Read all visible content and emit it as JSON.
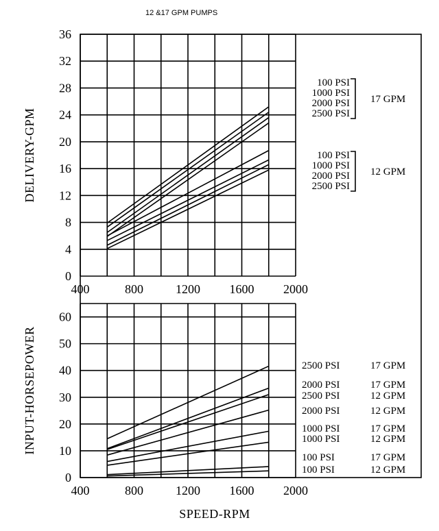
{
  "chart_data": [
    {
      "type": "line",
      "title": "12 &17 GPM PUMPS",
      "xlabel": "",
      "ylabel": "DELIVERY-GPM",
      "xlim": [
        400,
        2000
      ],
      "ylim": [
        0,
        36
      ],
      "x_ticks": [
        "400",
        "800",
        "1200",
        "1600",
        "2000"
      ],
      "y_ticks": [
        "0",
        "4",
        "8",
        "12",
        "16",
        "20",
        "24",
        "28",
        "32",
        "36"
      ],
      "grid": true,
      "legend_groups": [
        {
          "entries": [
            "100 PSI",
            "1000 PSI",
            "2000 PSI",
            "2500 PSI"
          ],
          "label": "17 GPM"
        },
        {
          "entries": [
            "100 PSI",
            "1000 PSI",
            "2000 PSI",
            "2500 PSI"
          ],
          "label": "12 GPM"
        }
      ],
      "series": [
        {
          "x": [
            600,
            1800
          ],
          "y": [
            7.9,
            25.2
          ]
        },
        {
          "x": [
            600,
            1800
          ],
          "y": [
            7.3,
            24.4
          ]
        },
        {
          "x": [
            600,
            1800
          ],
          "y": [
            6.5,
            23.6
          ]
        },
        {
          "x": [
            600,
            1800
          ],
          "y": [
            5.9,
            22.8
          ]
        },
        {
          "x": [
            600,
            1800
          ],
          "y": [
            6.0,
            18.7
          ]
        },
        {
          "x": [
            600,
            1800
          ],
          "y": [
            5.3,
            17.3
          ]
        },
        {
          "x": [
            600,
            1800
          ],
          "y": [
            4.6,
            16.6
          ]
        },
        {
          "x": [
            600,
            1800
          ],
          "y": [
            4.1,
            15.8
          ]
        }
      ]
    },
    {
      "type": "line",
      "title": "",
      "xlabel": "SPEED-RPM",
      "ylabel": "INPUT-HORSEPOWER",
      "xlim": [
        400,
        2000
      ],
      "ylim": [
        0,
        65
      ],
      "x_ticks": [
        "400",
        "800",
        "1200",
        "1600",
        "2000"
      ],
      "y_ticks": [
        "0",
        "10",
        "20",
        "30",
        "40",
        "50",
        "60"
      ],
      "grid": true,
      "legend_rows": [
        {
          "psi": "2500 PSI",
          "gpm": "17 GPM"
        },
        {
          "psi": "2000 PSI",
          "gpm": "17 GPM"
        },
        {
          "psi": "2500 PSI",
          "gpm": "12 GPM"
        },
        {
          "psi": "2000 PSI",
          "gpm": "12 GPM"
        },
        {
          "psi": "1000 PSI",
          "gpm": "17 GPM"
        },
        {
          "psi": "1000 PSI",
          "gpm": "12 GPM"
        },
        {
          "psi": "100 PSI",
          "gpm": "17 GPM"
        },
        {
          "psi": "100 PSI",
          "gpm": "12 GPM"
        }
      ],
      "series": [
        {
          "x": [
            600,
            1800
          ],
          "y": [
            14.5,
            41.6
          ]
        },
        {
          "x": [
            600,
            1800
          ],
          "y": [
            10.8,
            33.4
          ]
        },
        {
          "x": [
            600,
            1800
          ],
          "y": [
            10.5,
            31.0
          ]
        },
        {
          "x": [
            600,
            1800
          ],
          "y": [
            8.4,
            25.2
          ]
        },
        {
          "x": [
            600,
            1800
          ],
          "y": [
            6.0,
            17.3
          ]
        },
        {
          "x": [
            600,
            1800
          ],
          "y": [
            4.6,
            13.2
          ]
        },
        {
          "x": [
            600,
            1800
          ],
          "y": [
            1.1,
            4.1
          ]
        },
        {
          "x": [
            600,
            1800
          ],
          "y": [
            0.6,
            2.5
          ]
        }
      ]
    }
  ]
}
